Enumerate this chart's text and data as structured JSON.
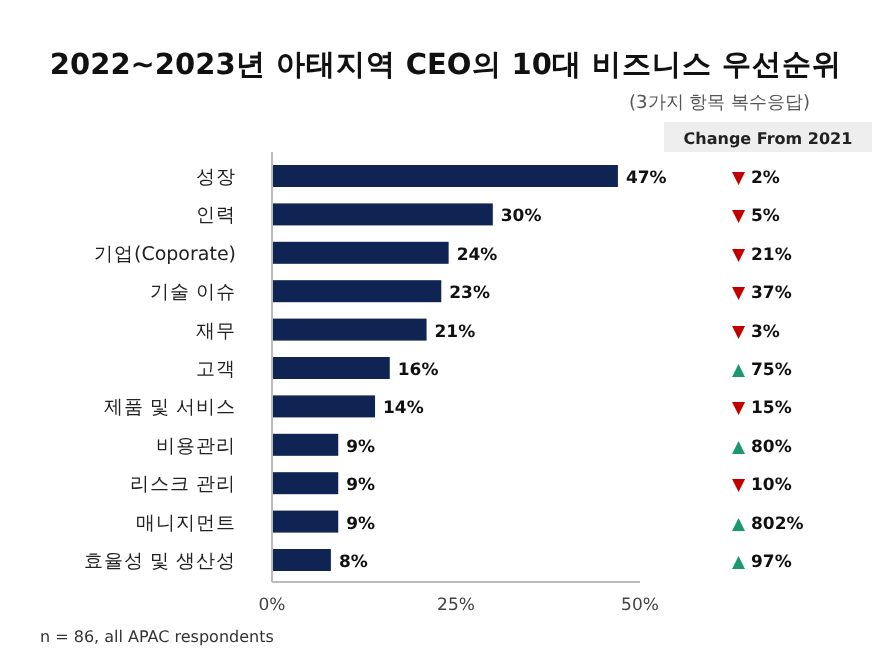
{
  "chart_data": [
    {
      "type": "bar",
      "orientation": "horizontal",
      "title": "2022~2023년 아태지역 CEO의 10대 비즈니스 우선순위",
      "subtitle": "(3가지 항목 복수응답)",
      "categories": [
        "성장",
        "인력",
        "기업(Coporate)",
        "기술 이슈",
        "재무",
        "고객",
        "제품 및 서비스",
        "비용관리",
        "리스크 관리",
        "매니지먼트",
        "효율성 및 생산성"
      ],
      "values": [
        47,
        30,
        24,
        23,
        21,
        16,
        14,
        9,
        9,
        9,
        8
      ],
      "value_labels": [
        "47%",
        "30%",
        "24%",
        "23%",
        "21%",
        "16%",
        "14%",
        "9%",
        "9%",
        "9%",
        "8%"
      ],
      "color": "#0f2452",
      "xlim": [
        0,
        50
      ],
      "xticks": [
        {
          "value": 0,
          "label": "0%"
        },
        {
          "value": 25,
          "label": "25%"
        },
        {
          "value": 50,
          "label": "50%"
        }
      ],
      "annotations": [
        "n = 86, all APAC respondents"
      ]
    },
    {
      "type": "other",
      "title": "Change From 2021",
      "annotations": [
        "▼ 2%",
        "▼ 5%",
        "▼ 21%",
        "▼ 37%",
        "▼ 3%",
        "▲ 75%",
        "▼ 15%",
        "▲ 80%",
        "▼ 10%",
        "▲ 802%",
        "▲ 97%"
      ],
      "colors": [
        "#c00000",
        "#c00000",
        "#c00000",
        "#c00000",
        "#c00000",
        "#1a9a6c",
        "#c00000",
        "#1a9a6c",
        "#c00000",
        "#1a9a6c",
        "#1a9a6c"
      ]
    }
  ]
}
